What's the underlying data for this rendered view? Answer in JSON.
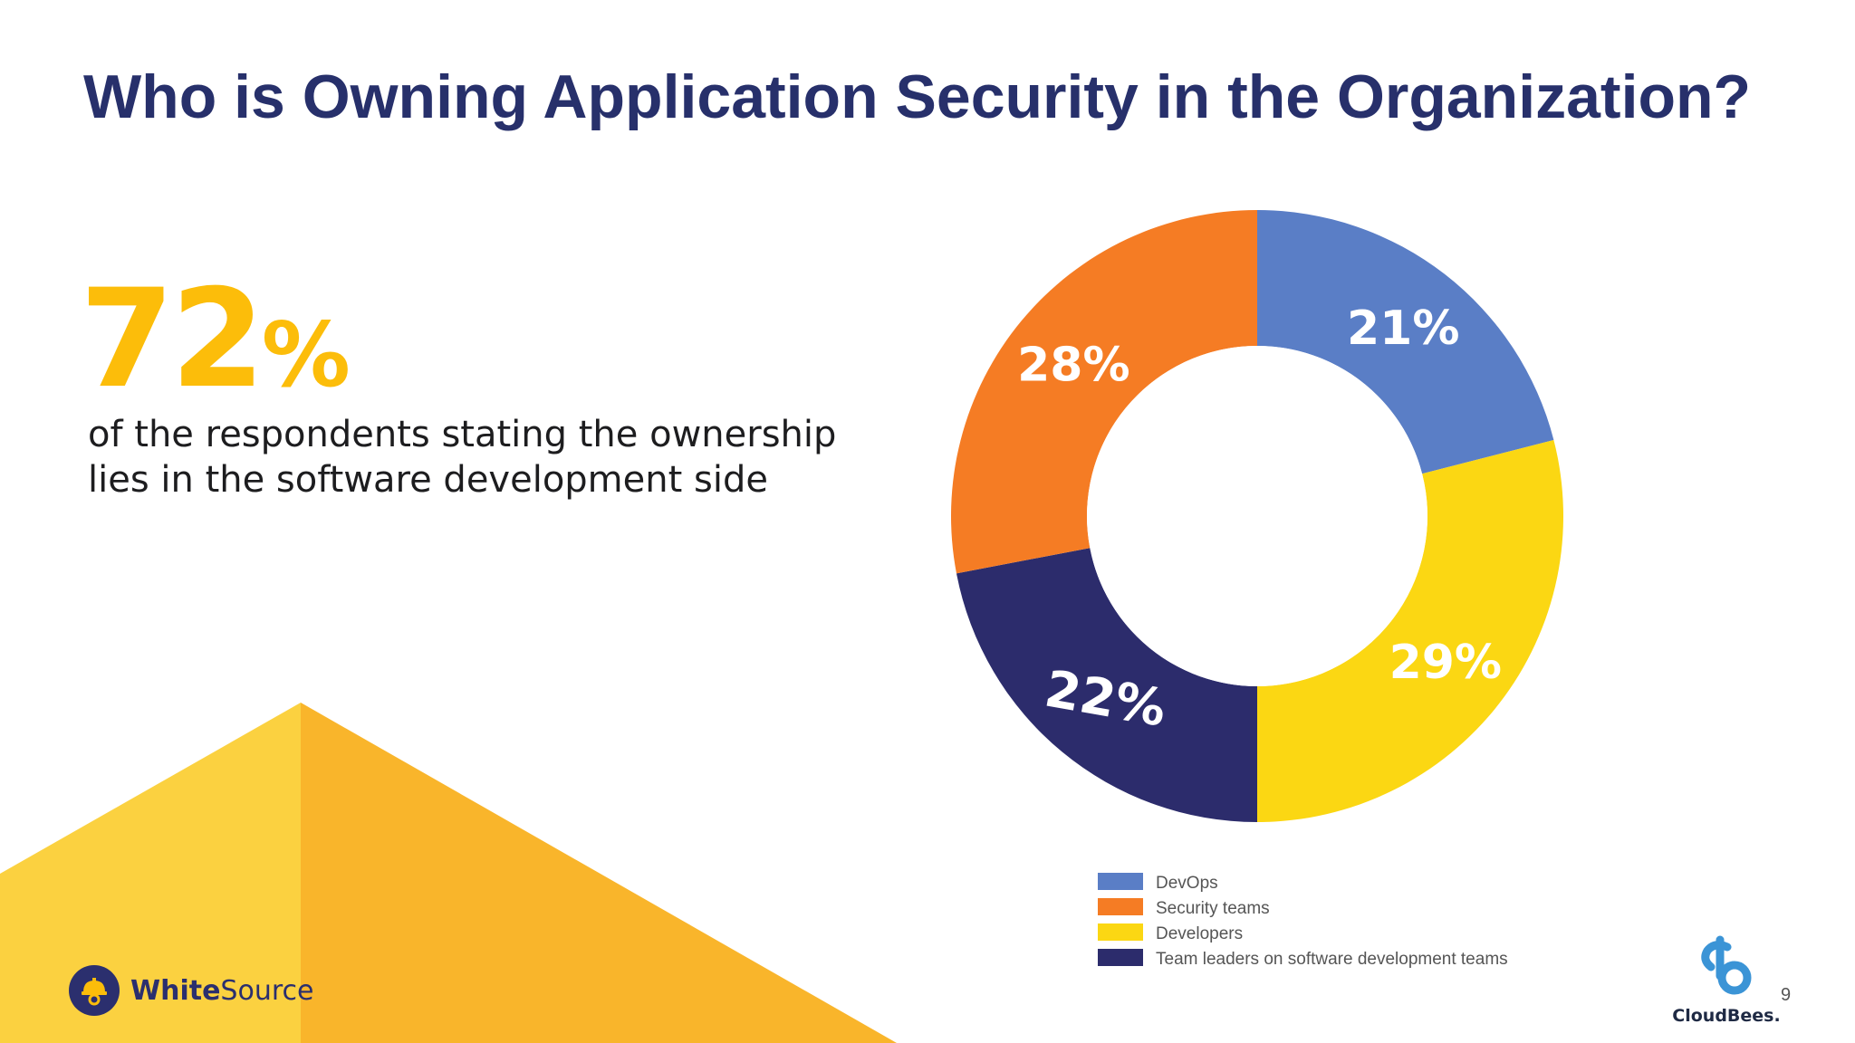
{
  "header": {
    "title": "Who is Owning Application Security in the Organization?"
  },
  "highlight": {
    "number": "72",
    "percent_sign": "%",
    "description_line1": "of the respondents stating the ownership",
    "description_line2": "lies in the software development side"
  },
  "chart_data": {
    "type": "pie",
    "variant": "donut",
    "title": "",
    "labels": [
      "DevOps",
      "Security teams",
      "Developers",
      "Team leaders on software development teams"
    ],
    "values": [
      21,
      28,
      29,
      22
    ],
    "display_labels": [
      "21%",
      "28%",
      "29%",
      "22%"
    ],
    "colors": [
      "#5a7ec6",
      "#f57c24",
      "#fbd713",
      "#2c2c6c"
    ],
    "legend_position": "bottom",
    "legend": [
      {
        "label": "DevOps",
        "color": "#5a7ec6"
      },
      {
        "label": "Security teams",
        "color": "#f57c24"
      },
      {
        "label": "Developers",
        "color": "#fbd713"
      },
      {
        "label": "Team leaders on software development teams",
        "color": "#2c2c6c"
      }
    ]
  },
  "footer": {
    "brand_left_bold": "White",
    "brand_left_light": "Source",
    "brand_right": "CloudBees.",
    "page_number": "9"
  },
  "colors": {
    "title": "#27306b",
    "accent_yellow": "#fcbd0a",
    "triangle_light": "#fbd140",
    "triangle_dark": "#f9b52b"
  },
  "icons": {
    "left_logo": "hardhat-gear-icon",
    "right_logo": "cloudbees-icon"
  }
}
